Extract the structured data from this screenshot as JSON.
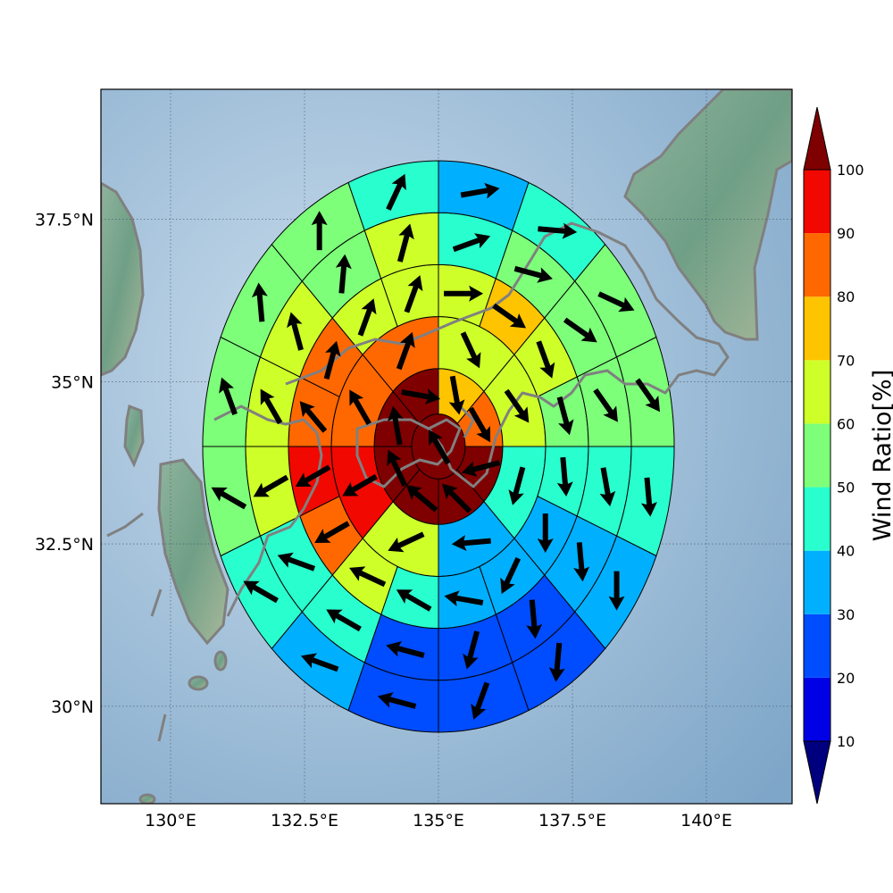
{
  "colors": {
    "ocean_light": "#c9dcec",
    "ocean_dark": "#7ea6c8",
    "land": "#6f9f86",
    "coastline": "#808080",
    "gridline": "#445566",
    "arrow": "#000000"
  },
  "colormap": [
    {
      "min": 0,
      "max": 10,
      "color": "#00007f"
    },
    {
      "min": 10,
      "max": 20,
      "color": "#0000e6"
    },
    {
      "min": 20,
      "max": 30,
      "color": "#004cff"
    },
    {
      "min": 30,
      "max": 40,
      "color": "#00b0ff"
    },
    {
      "min": 40,
      "max": 50,
      "color": "#29ffce"
    },
    {
      "min": 50,
      "max": 60,
      "color": "#7dff7a"
    },
    {
      "min": 60,
      "max": 70,
      "color": "#ceff29"
    },
    {
      "min": 70,
      "max": 80,
      "color": "#ffc400"
    },
    {
      "min": 80,
      "max": 90,
      "color": "#ff6800"
    },
    {
      "min": 90,
      "max": 100,
      "color": "#f10800"
    },
    {
      "min": 100,
      "max": 110,
      "color": "#7f0000"
    }
  ],
  "axes": {
    "x_ticks": [
      {
        "value": 130.0,
        "label": "130°E"
      },
      {
        "value": 132.5,
        "label": "132.5°E"
      },
      {
        "value": 135.0,
        "label": "135°E"
      },
      {
        "value": 137.5,
        "label": "137.5°E"
      },
      {
        "value": 140.0,
        "label": "140°E"
      }
    ],
    "y_ticks": [
      {
        "value": 30.0,
        "label": "30°N"
      },
      {
        "value": 32.5,
        "label": "32.5°N"
      },
      {
        "value": 35.0,
        "label": "35°N"
      },
      {
        "value": 37.5,
        "label": "37.5°N"
      }
    ],
    "x_range": [
      128.7,
      141.6
    ],
    "y_range": [
      28.5,
      39.5
    ],
    "grid": true
  },
  "colorbar": {
    "title": "Wind Ratio[%]",
    "tick_labels": [
      "10",
      "20",
      "30",
      "40",
      "50",
      "60",
      "70",
      "80",
      "90",
      "100"
    ],
    "extend": "both"
  },
  "chart_data": {
    "type": "polar-sector-map",
    "center": {
      "lon": 135.0,
      "lat": 34.0
    },
    "ring_radii_deg": [
      0.5,
      1.2,
      2.0,
      2.8,
      3.6,
      4.4
    ],
    "rings": [
      {
        "sectors": 1,
        "values": [
          100
        ],
        "wind_dir": [
          330
        ]
      },
      {
        "sectors": 8,
        "values": [
          75,
          85,
          100,
          100,
          100,
          100,
          100,
          100
        ],
        "wind_dir": [
          170,
          150,
          255,
          315,
          310,
          335,
          350,
          100
        ]
      },
      {
        "sectors": 8,
        "values": [
          65,
          65,
          45,
          35,
          65,
          95,
          85,
          85
        ],
        "wind_dir": [
          155,
          145,
          195,
          265,
          245,
          240,
          330,
          20
        ]
      },
      {
        "sectors": 16,
        "values": [
          65,
          75,
          65,
          55,
          45,
          35,
          35,
          35,
          45,
          65,
          85,
          95,
          85,
          85,
          65,
          65
        ],
        "wind_dir": [
          90,
          125,
          160,
          165,
          175,
          180,
          205,
          280,
          300,
          295,
          240,
          240,
          320,
          15,
          20,
          20
        ]
      },
      {
        "sectors": 16,
        "values": [
          45,
          55,
          55,
          55,
          45,
          35,
          25,
          25,
          25,
          45,
          45,
          65,
          65,
          65,
          55,
          65
        ],
        "wind_dir": [
          70,
          105,
          125,
          145,
          170,
          175,
          175,
          195,
          285,
          300,
          290,
          240,
          330,
          345,
          5,
          15
        ]
      },
      {
        "sectors": 16,
        "values": [
          35,
          45,
          55,
          55,
          45,
          35,
          25,
          25,
          25,
          35,
          45,
          55,
          55,
          55,
          55,
          45
        ],
        "wind_dir": [
          80,
          95,
          115,
          145,
          175,
          180,
          185,
          200,
          285,
          290,
          300,
          300,
          340,
          355,
          0,
          25
        ]
      }
    ]
  }
}
